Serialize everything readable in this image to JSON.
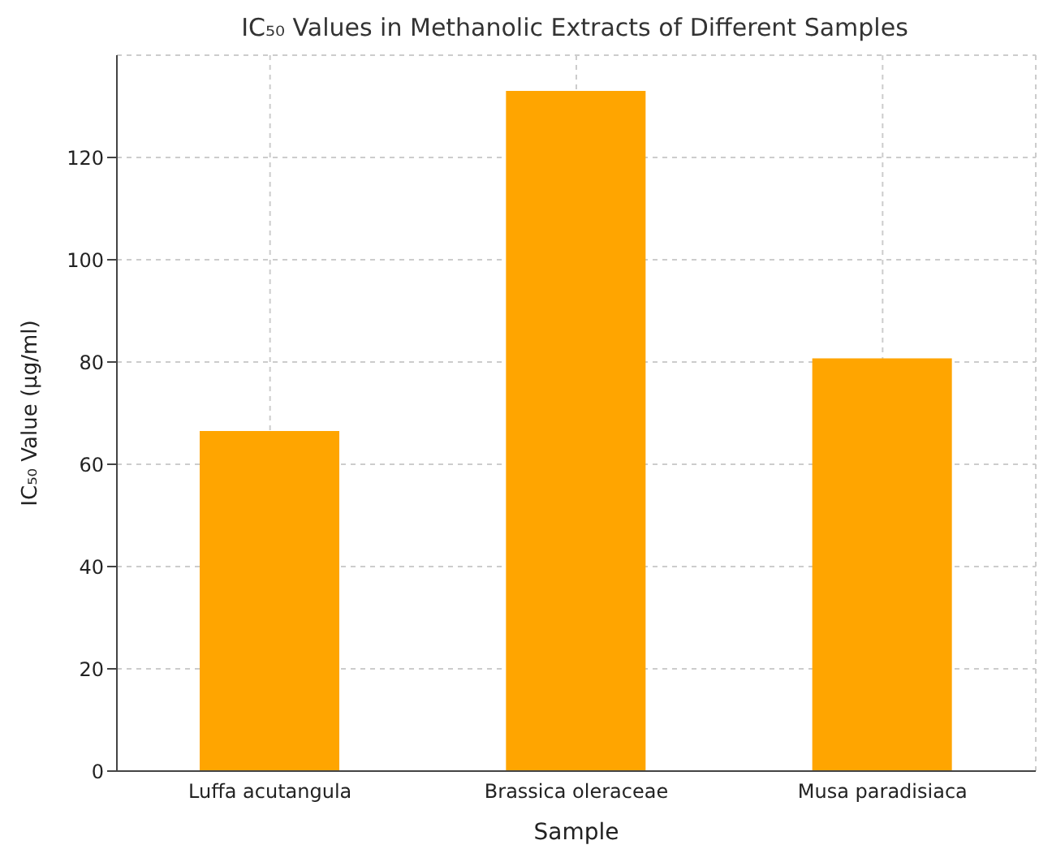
{
  "chart_data": {
    "type": "bar",
    "title": "IC₅₀ Values in Methanolic Extracts of Different Samples",
    "xlabel": "Sample",
    "ylabel": "IC₅₀ Value (µg/ml)",
    "categories": [
      "Luffa acutangula",
      "Brassica oleraceae",
      "Musa paradisiaca"
    ],
    "values": [
      66.5,
      133,
      80.7
    ],
    "color": "#ffa500",
    "ylim": [
      0,
      140
    ],
    "yticks": [
      0,
      20,
      40,
      60,
      80,
      100,
      120
    ],
    "grid": true
  }
}
